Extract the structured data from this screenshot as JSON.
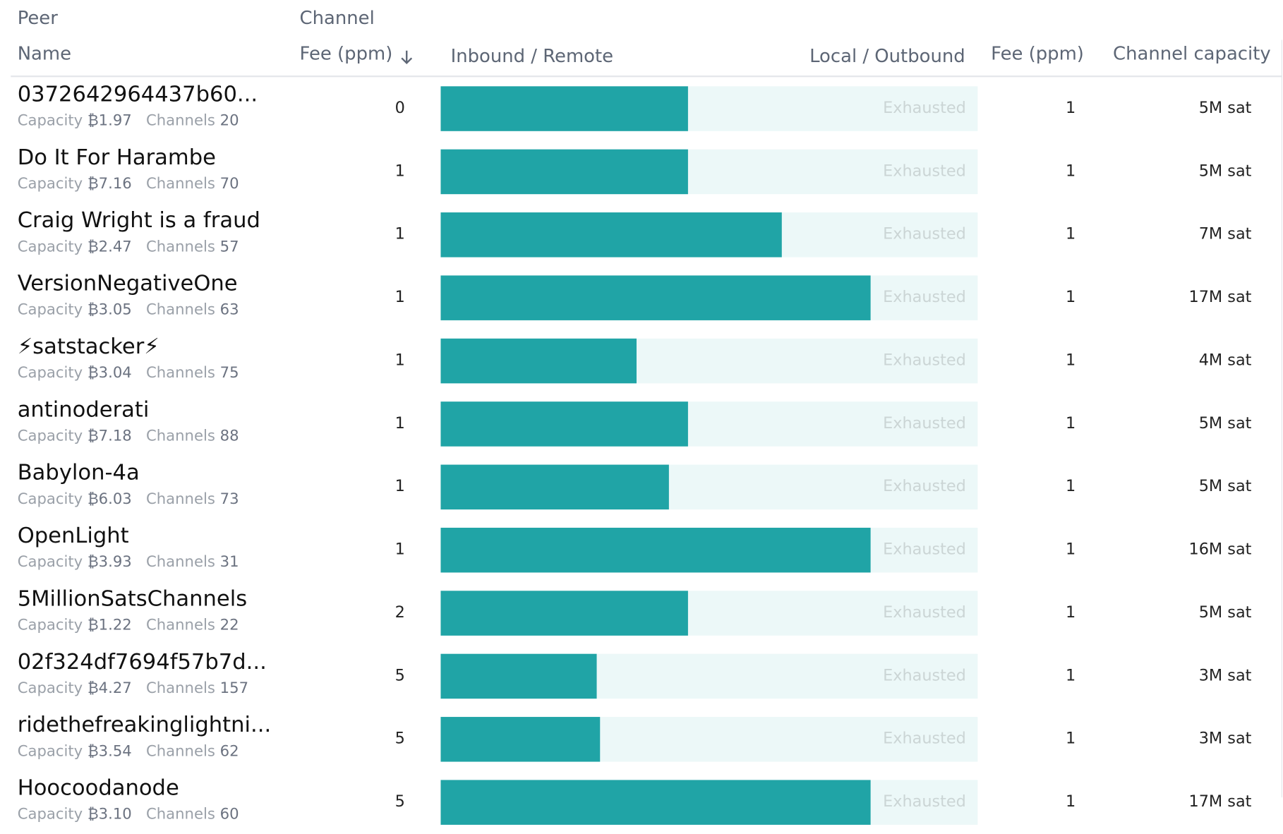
{
  "header": {
    "peer": "Peer",
    "name": "Name",
    "channel": "Channel",
    "fee": "Fee (ppm)",
    "inbound": "Inbound / Remote",
    "outbound": "Local / Outbound",
    "remote_fee": "Fee (ppm)",
    "capacity": "Channel capacity"
  },
  "labels": {
    "capacity": "Capacity",
    "channels": "Channels",
    "exhausted": "Exhausted"
  },
  "rows": [
    {
      "name": "0372642964437b60...",
      "capacity": "₿1.97",
      "channels": 20,
      "fee": 0,
      "inbound_share": 0.46,
      "remote_fee": 1,
      "channel_capacity": "5M sat"
    },
    {
      "name": "Do It For Harambe",
      "capacity": "₿7.16",
      "channels": 70,
      "fee": 1,
      "inbound_share": 0.46,
      "remote_fee": 1,
      "channel_capacity": "5M sat"
    },
    {
      "name": "Craig Wright is a fraud",
      "capacity": "₿2.47",
      "channels": 57,
      "fee": 1,
      "inbound_share": 0.635,
      "remote_fee": 1,
      "channel_capacity": "7M sat"
    },
    {
      "name": "VersionNegativeOne",
      "capacity": "₿3.05",
      "channels": 63,
      "fee": 1,
      "inbound_share": 0.8,
      "remote_fee": 1,
      "channel_capacity": "17M sat"
    },
    {
      "name": "⚡satstacker⚡",
      "capacity": "₿3.04",
      "channels": 75,
      "fee": 1,
      "inbound_share": 0.365,
      "remote_fee": 1,
      "channel_capacity": "4M sat"
    },
    {
      "name": "antinoderati",
      "capacity": "₿7.18",
      "channels": 88,
      "fee": 1,
      "inbound_share": 0.46,
      "remote_fee": 1,
      "channel_capacity": "5M sat"
    },
    {
      "name": "Babylon-4a",
      "capacity": "₿6.03",
      "channels": 73,
      "fee": 1,
      "inbound_share": 0.425,
      "remote_fee": 1,
      "channel_capacity": "5M sat"
    },
    {
      "name": "OpenLight",
      "capacity": "₿3.93",
      "channels": 31,
      "fee": 1,
      "inbound_share": 0.8,
      "remote_fee": 1,
      "channel_capacity": "16M sat"
    },
    {
      "name": "5MillionSatsChannels",
      "capacity": "₿1.22",
      "channels": 22,
      "fee": 2,
      "inbound_share": 0.46,
      "remote_fee": 1,
      "channel_capacity": "5M sat"
    },
    {
      "name": "02f324df7694f57b7d...",
      "capacity": "₿4.27",
      "channels": 157,
      "fee": 5,
      "inbound_share": 0.29,
      "remote_fee": 1,
      "channel_capacity": "3M sat"
    },
    {
      "name": "ridethefreakinglightni...",
      "capacity": "₿3.54",
      "channels": 62,
      "fee": 5,
      "inbound_share": 0.297,
      "remote_fee": 1,
      "channel_capacity": "3M sat"
    },
    {
      "name": "Hoocoodanode",
      "capacity": "₿3.10",
      "channels": 60,
      "fee": 5,
      "inbound_share": 0.8,
      "remote_fee": 1,
      "channel_capacity": "17M sat"
    }
  ]
}
